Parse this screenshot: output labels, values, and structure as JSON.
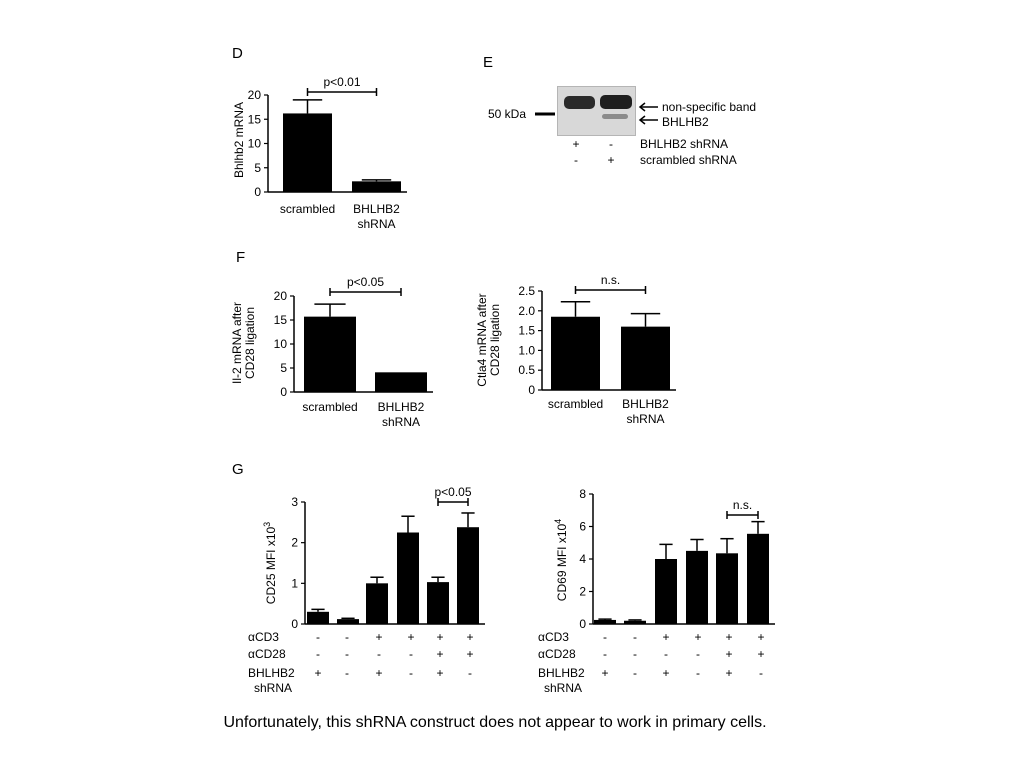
{
  "slide": {
    "caption": "Unfortunately, this shRNA construct does not appear to work in primary cells."
  },
  "panel_e": {
    "letter": "E",
    "marker": "50 kDa",
    "band_labels": [
      "non-specific band",
      "BHLHB2"
    ],
    "row_labels": [
      "BHLHB2 shRNA",
      "scrambled shRNA"
    ],
    "signs": [
      [
        "+",
        "-"
      ],
      [
        "-",
        "+"
      ]
    ]
  },
  "chart_data": [
    {
      "panel": "D",
      "type": "bar",
      "categories": [
        "scrambled",
        "BHLHB2\nshRNA"
      ],
      "values": [
        16.2,
        2.2
      ],
      "errors": [
        2.8,
        0.3
      ],
      "ylabel": "Bhlhb2 mRNA",
      "ylim": [
        0,
        20
      ],
      "yticks": [
        0,
        5,
        10,
        15,
        20
      ],
      "annotations": [
        {
          "text": "p<0.01",
          "from": 0,
          "to": 1
        }
      ]
    },
    {
      "panel": "F",
      "type": "bar",
      "categories": [
        "scrambled",
        "BHLHB2\nshRNA"
      ],
      "values": [
        15.7,
        4.1
      ],
      "errors": [
        2.6,
        0
      ],
      "ylabel": "Il-2 mRNA after\nCD28 ligation",
      "ylim": [
        0,
        20
      ],
      "yticks": [
        0,
        5,
        10,
        15,
        20
      ],
      "annotations": [
        {
          "text": "p<0.05",
          "from": 0,
          "to": 1
        }
      ]
    },
    {
      "panel": "",
      "type": "bar",
      "categories": [
        "scrambled",
        "BHLHB2\nshRNA"
      ],
      "values": [
        1.85,
        1.6
      ],
      "errors": [
        0.38,
        0.33
      ],
      "ylabel": "Ctla4 mRNA after\nCD28 ligation",
      "ylim": [
        0,
        2.5
      ],
      "yticks": [
        "0",
        "0.5",
        "1.0",
        "1.5",
        "2.0",
        "2.5"
      ],
      "annotations": [
        {
          "text": "n.s.",
          "from": 0,
          "to": 1
        }
      ]
    },
    {
      "panel": "G",
      "type": "bar",
      "categories": [
        "1",
        "2",
        "3",
        "4",
        "5",
        "6"
      ],
      "values": [
        0.3,
        0.12,
        1.0,
        2.25,
        1.03,
        2.38
      ],
      "errors": [
        0.06,
        0.02,
        0.15,
        0.4,
        0.12,
        0.35
      ],
      "ylabel": "CD25 MFI x10",
      "ylabel_exp": "3",
      "ylim": [
        0,
        3
      ],
      "yticks": [
        0,
        1,
        2,
        3
      ],
      "annotations": [
        {
          "text": "p<0.05",
          "from": 4,
          "to": 5
        }
      ],
      "condition_rows": [
        {
          "label": "αCD3",
          "signs": [
            "-",
            "-",
            "+",
            "+",
            "+",
            "+"
          ]
        },
        {
          "label": "αCD28",
          "signs": [
            "-",
            "-",
            "-",
            "-",
            "+",
            "+"
          ]
        },
        {
          "label": "BHLHB2\nshRNA",
          "signs": [
            "+",
            "-",
            "+",
            "-",
            "+",
            "-"
          ]
        }
      ]
    },
    {
      "panel": "",
      "type": "bar",
      "categories": [
        "1",
        "2",
        "3",
        "4",
        "5",
        "6"
      ],
      "values": [
        0.25,
        0.2,
        4.0,
        4.5,
        4.35,
        5.55
      ],
      "errors": [
        0.05,
        0.05,
        0.9,
        0.7,
        0.9,
        0.75
      ],
      "ylabel": "CD69 MFI x10",
      "ylabel_exp": "4",
      "ylim": [
        0,
        8
      ],
      "yticks": [
        0,
        2,
        4,
        6,
        8
      ],
      "annotations": [
        {
          "text": "n.s.",
          "from": 4,
          "to": 5
        }
      ],
      "condition_rows": [
        {
          "label": "αCD3",
          "signs": [
            "-",
            "-",
            "+",
            "+",
            "+",
            "+"
          ]
        },
        {
          "label": "αCD28",
          "signs": [
            "-",
            "-",
            "-",
            "-",
            "+",
            "+"
          ]
        },
        {
          "label": "BHLHB2\nshRNA",
          "signs": [
            "+",
            "-",
            "+",
            "-",
            "+",
            "-"
          ]
        }
      ]
    }
  ]
}
